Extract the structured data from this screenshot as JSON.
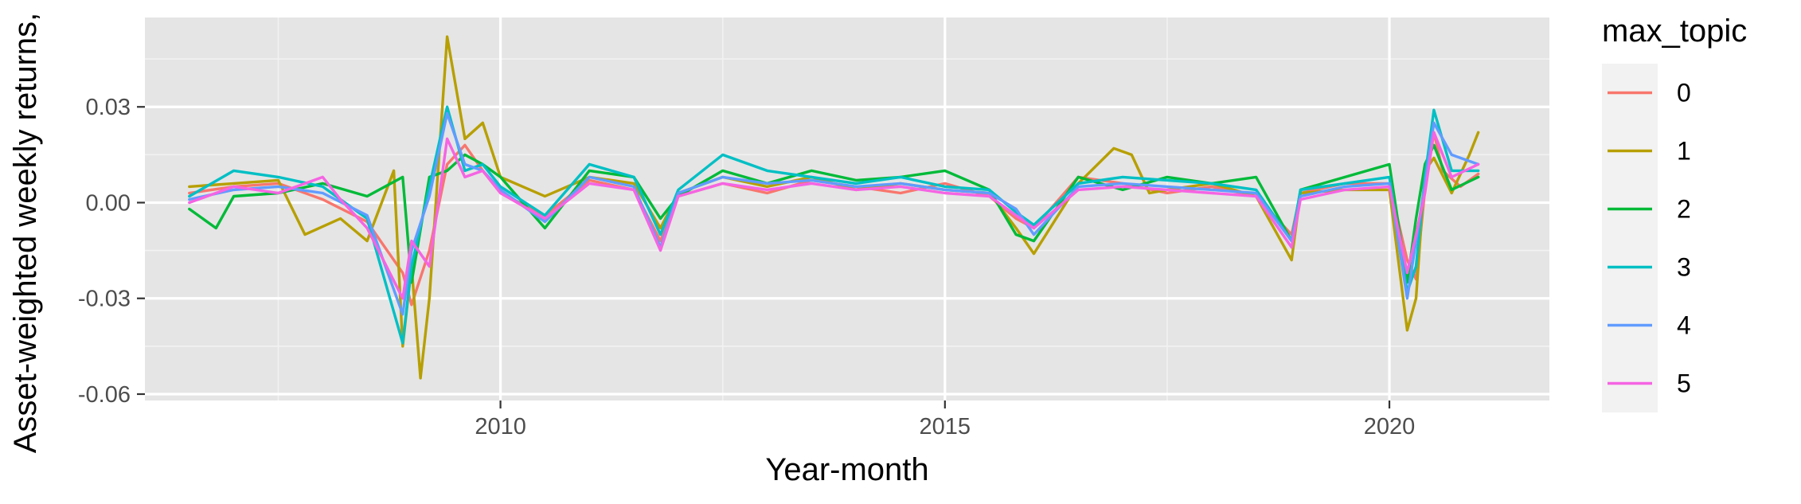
{
  "chart_data": {
    "type": "line",
    "xlabel": "Year-month",
    "ylabel": "Asset-weighted weekly returns,",
    "xlim": [
      2006.0,
      2021.8
    ],
    "ylim": [
      -0.062,
      0.058
    ],
    "x_ticks": [
      {
        "value": 2010,
        "label": "2010"
      },
      {
        "value": 2015,
        "label": "2015"
      },
      {
        "value": 2020,
        "label": "2020"
      }
    ],
    "x_minor_ticks": [
      2007.5,
      2012.5,
      2017.5
    ],
    "y_ticks": [
      {
        "value": 0.03,
        "label": "0.03"
      },
      {
        "value": 0.0,
        "label": "0.00"
      },
      {
        "value": -0.03,
        "label": "-0.03"
      },
      {
        "value": -0.06,
        "label": "-0.06"
      }
    ],
    "y_minor_ticks": [
      0.045,
      0.015,
      -0.015,
      -0.045
    ],
    "grid": true,
    "background": "#e5e5e5",
    "legend": {
      "title": "max_topic",
      "position": "right"
    },
    "series": [
      {
        "name": "0",
        "color": "#f8766d",
        "x": [
          2006.5,
          2007.0,
          2007.5,
          2008.0,
          2008.5,
          2008.9,
          2009.0,
          2009.2,
          2009.4,
          2009.6,
          2009.8,
          2010.0,
          2010.5,
          2011.0,
          2011.5,
          2011.8,
          2012.0,
          2012.5,
          2013.0,
          2013.5,
          2014.0,
          2014.5,
          2015.0,
          2015.5,
          2015.8,
          2016.0,
          2016.5,
          2017.0,
          2017.5,
          2018.0,
          2018.5,
          2018.9,
          2019.0,
          2019.5,
          2020.0,
          2020.2,
          2020.3,
          2020.4,
          2020.5,
          2020.6,
          2020.8,
          2021.0
        ],
        "y": [
          0.003,
          0.005,
          0.006,
          0.001,
          -0.006,
          -0.022,
          -0.032,
          -0.015,
          0.012,
          0.018,
          0.01,
          0.003,
          -0.004,
          0.007,
          0.004,
          -0.012,
          0.002,
          0.006,
          0.003,
          0.007,
          0.005,
          0.003,
          0.006,
          0.002,
          -0.005,
          -0.008,
          0.008,
          0.006,
          0.003,
          0.005,
          0.002,
          -0.01,
          0.003,
          0.006,
          0.006,
          -0.018,
          -0.024,
          0.004,
          0.022,
          0.01,
          0.005,
          0.009
        ]
      },
      {
        "name": "1",
        "color": "#b79f00",
        "x": [
          2006.5,
          2007.0,
          2007.5,
          2007.8,
          2008.2,
          2008.5,
          2008.8,
          2008.9,
          2009.0,
          2009.1,
          2009.2,
          2009.4,
          2009.6,
          2009.8,
          2010.0,
          2010.5,
          2011.0,
          2011.5,
          2011.8,
          2012.0,
          2012.5,
          2013.0,
          2013.5,
          2014.0,
          2014.5,
          2015.0,
          2015.5,
          2015.8,
          2016.0,
          2016.5,
          2016.9,
          2017.1,
          2017.3,
          2017.5,
          2018.0,
          2018.5,
          2018.9,
          2019.0,
          2019.5,
          2020.0,
          2020.2,
          2020.3,
          2020.4,
          2020.5,
          2020.7,
          2020.9,
          2021.0
        ],
        "y": [
          0.005,
          0.006,
          0.007,
          -0.01,
          -0.005,
          -0.012,
          0.01,
          -0.045,
          -0.02,
          -0.055,
          -0.03,
          0.052,
          0.02,
          0.025,
          0.008,
          0.002,
          0.008,
          0.006,
          -0.008,
          0.003,
          0.008,
          0.005,
          0.008,
          0.004,
          0.006,
          0.004,
          0.003,
          -0.008,
          -0.016,
          0.006,
          0.017,
          0.015,
          0.003,
          0.004,
          0.006,
          0.002,
          -0.018,
          0.003,
          0.004,
          0.004,
          -0.04,
          -0.03,
          0.01,
          0.014,
          0.003,
          0.015,
          0.022
        ]
      },
      {
        "name": "2",
        "color": "#00ba38",
        "x": [
          2006.5,
          2006.8,
          2007.0,
          2007.5,
          2008.0,
          2008.5,
          2008.9,
          2009.0,
          2009.2,
          2009.4,
          2009.6,
          2009.8,
          2010.0,
          2010.5,
          2011.0,
          2011.5,
          2011.8,
          2012.0,
          2012.5,
          2013.0,
          2013.5,
          2014.0,
          2014.5,
          2015.0,
          2015.5,
          2015.8,
          2016.0,
          2016.5,
          2017.0,
          2017.5,
          2018.0,
          2018.5,
          2018.9,
          2019.0,
          2019.5,
          2020.0,
          2020.2,
          2020.3,
          2020.4,
          2020.5,
          2020.7,
          2021.0
        ],
        "y": [
          -0.002,
          -0.008,
          0.002,
          0.003,
          0.006,
          0.002,
          0.008,
          -0.025,
          0.008,
          0.01,
          0.015,
          0.012,
          0.008,
          -0.008,
          0.01,
          0.008,
          -0.005,
          0.002,
          0.01,
          0.006,
          0.01,
          0.007,
          0.008,
          0.01,
          0.004,
          -0.01,
          -0.012,
          0.008,
          0.004,
          0.008,
          0.006,
          0.008,
          -0.012,
          0.004,
          0.008,
          0.012,
          -0.025,
          -0.005,
          0.012,
          0.018,
          0.004,
          0.008
        ]
      },
      {
        "name": "3",
        "color": "#00bfc4",
        "x": [
          2006.5,
          2007.0,
          2007.5,
          2008.0,
          2008.5,
          2008.9,
          2009.0,
          2009.2,
          2009.4,
          2009.6,
          2009.8,
          2010.0,
          2010.5,
          2011.0,
          2011.5,
          2011.8,
          2012.0,
          2012.5,
          2013.0,
          2013.5,
          2014.0,
          2014.5,
          2015.0,
          2015.5,
          2015.8,
          2016.0,
          2016.5,
          2017.0,
          2017.5,
          2018.0,
          2018.5,
          2018.9,
          2019.0,
          2019.5,
          2020.0,
          2020.2,
          2020.3,
          2020.4,
          2020.5,
          2020.7,
          2021.0
        ],
        "y": [
          0.002,
          0.01,
          0.008,
          0.005,
          -0.005,
          -0.044,
          -0.02,
          0.005,
          0.03,
          0.01,
          0.012,
          0.005,
          -0.004,
          0.012,
          0.008,
          -0.01,
          0.004,
          0.015,
          0.01,
          0.008,
          0.006,
          0.008,
          0.005,
          0.004,
          -0.003,
          -0.007,
          0.006,
          0.008,
          0.007,
          0.006,
          0.004,
          -0.012,
          0.004,
          0.006,
          0.008,
          -0.028,
          -0.02,
          0.008,
          0.029,
          0.01,
          0.01
        ]
      },
      {
        "name": "4",
        "color": "#619cff",
        "x": [
          2006.5,
          2007.0,
          2007.5,
          2008.0,
          2008.5,
          2008.9,
          2009.0,
          2009.2,
          2009.4,
          2009.6,
          2009.8,
          2010.0,
          2010.5,
          2011.0,
          2011.5,
          2011.8,
          2012.0,
          2012.5,
          2013.0,
          2013.5,
          2014.0,
          2014.5,
          2015.0,
          2015.5,
          2015.8,
          2016.0,
          2016.5,
          2017.0,
          2017.5,
          2018.0,
          2018.5,
          2018.9,
          2019.0,
          2019.5,
          2020.0,
          2020.2,
          2020.3,
          2020.4,
          2020.5,
          2020.7,
          2021.0
        ],
        "y": [
          0.001,
          0.004,
          0.005,
          0.003,
          -0.004,
          -0.035,
          -0.015,
          0.002,
          0.028,
          0.012,
          0.01,
          0.004,
          -0.006,
          0.008,
          0.005,
          -0.014,
          0.003,
          0.008,
          0.006,
          0.007,
          0.005,
          0.006,
          0.004,
          0.003,
          -0.002,
          -0.01,
          0.005,
          0.006,
          0.005,
          0.004,
          0.003,
          -0.012,
          0.002,
          0.005,
          0.006,
          -0.03,
          -0.012,
          0.006,
          0.025,
          0.015,
          0.012
        ]
      },
      {
        "name": "5",
        "color": "#f564e3",
        "x": [
          2006.5,
          2007.0,
          2007.5,
          2008.0,
          2008.2,
          2008.5,
          2008.9,
          2009.0,
          2009.2,
          2009.4,
          2009.6,
          2009.8,
          2010.0,
          2010.5,
          2011.0,
          2011.5,
          2011.8,
          2012.0,
          2012.5,
          2013.0,
          2013.5,
          2014.0,
          2014.5,
          2015.0,
          2015.5,
          2015.8,
          2016.0,
          2016.5,
          2017.0,
          2017.5,
          2018.0,
          2018.5,
          2018.9,
          2019.0,
          2019.5,
          2020.0,
          2020.2,
          2020.3,
          2020.4,
          2020.5,
          2020.7,
          2021.0
        ],
        "y": [
          0.0,
          0.005,
          0.003,
          0.008,
          0.001,
          -0.008,
          -0.03,
          -0.012,
          -0.02,
          0.02,
          0.008,
          0.01,
          0.003,
          -0.005,
          0.006,
          0.004,
          -0.015,
          0.002,
          0.006,
          0.004,
          0.006,
          0.004,
          0.005,
          0.003,
          0.002,
          -0.004,
          -0.008,
          0.004,
          0.005,
          0.004,
          0.003,
          0.002,
          -0.014,
          0.001,
          0.004,
          0.005,
          -0.022,
          -0.01,
          0.003,
          0.022,
          0.008,
          0.012
        ]
      }
    ]
  }
}
